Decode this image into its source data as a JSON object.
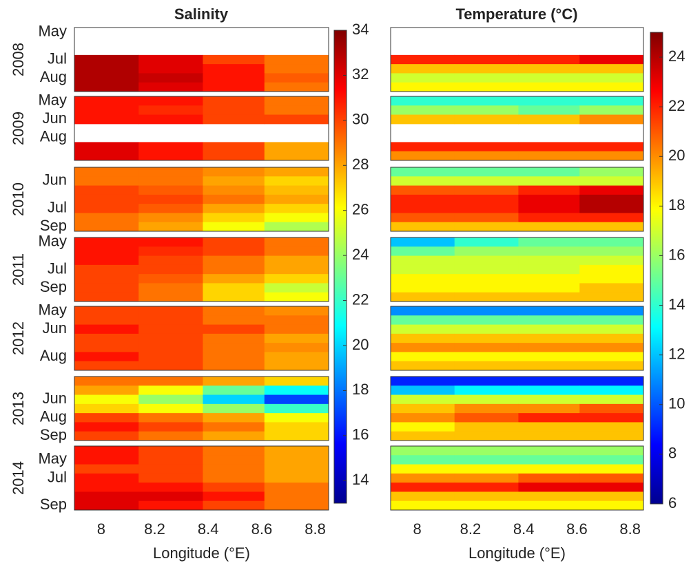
{
  "chart_data": [
    {
      "type": "heatmap",
      "title": "Salinity",
      "xlabel": "Longitude (°E)",
      "xlim": [
        7.9,
        8.85
      ],
      "xticks": [
        8,
        8.2,
        8.4,
        8.6,
        8.8
      ],
      "lon_bins": [
        7.9,
        8.14,
        8.38,
        8.61,
        8.85
      ],
      "clim": [
        13,
        34
      ],
      "cticks": [
        14,
        16,
        18,
        20,
        22,
        24,
        26,
        28,
        30,
        32,
        34
      ],
      "panels": [
        {
          "year": "2008",
          "rows": [
            "May",
            null,
            null,
            "Jul",
            null,
            "Aug",
            null
          ],
          "values": [
            null,
            null,
            null,
            [
              33,
              32,
              30,
              29
            ],
            [
              33,
              32,
              31,
              29
            ],
            [
              33,
              32.5,
              31,
              29.5
            ],
            [
              33,
              32,
              31,
              29
            ]
          ]
        },
        {
          "year": "2009",
          "rows": [
            "May",
            null,
            "Jun",
            null,
            "Aug",
            null,
            null
          ],
          "values": [
            [
              31,
              31,
              30,
              29
            ],
            [
              31,
              30.5,
              30,
              29
            ],
            [
              31,
              31,
              30,
              30
            ],
            null,
            null,
            [
              32,
              31,
              30,
              28
            ],
            [
              32,
              31,
              30,
              28
            ]
          ]
        },
        {
          "year": "2010",
          "rows": [
            null,
            "Jun",
            null,
            null,
            "Jul",
            null,
            "Sep"
          ],
          "values": [
            [
              29,
              29,
              28.5,
              28
            ],
            [
              29,
              29,
              28,
              27
            ],
            [
              30,
              29.5,
              28.5,
              27.5
            ],
            [
              30,
              30,
              29,
              28
            ],
            [
              30,
              29.5,
              28,
              27
            ],
            [
              29,
              28.5,
              27,
              26
            ],
            [
              29,
              28,
              26,
              24.5
            ]
          ]
        },
        {
          "year": "2011",
          "rows": [
            "May",
            null,
            null,
            "Jul",
            null,
            "Sep",
            null
          ],
          "values": [
            [
              31,
              31,
              30,
              29
            ],
            [
              31,
              30.5,
              30,
              29
            ],
            [
              31,
              30,
              29,
              28
            ],
            [
              30,
              30,
              29,
              28
            ],
            [
              30,
              29.5,
              28,
              27
            ],
            [
              30,
              29,
              27,
              25
            ],
            [
              30,
              29,
              27,
              26
            ]
          ]
        },
        {
          "year": "2012",
          "rows": [
            "May",
            null,
            "Jun",
            null,
            null,
            "Aug",
            null
          ],
          "values": [
            [
              30,
              30,
              29,
              28.5
            ],
            [
              30,
              30,
              29,
              29
            ],
            [
              31,
              30,
              30,
              29
            ],
            [
              30,
              30,
              29,
              28
            ],
            [
              30,
              30,
              29,
              28.5
            ],
            [
              31,
              30,
              29,
              28
            ],
            [
              30,
              30,
              29,
              28
            ]
          ]
        },
        {
          "year": "2013",
          "rows": [
            null,
            null,
            "Jun",
            null,
            "Aug",
            null,
            "Sep"
          ],
          "values": [
            [
              29,
              29,
              28,
              27
            ],
            [
              28,
              26,
              23,
              21
            ],
            [
              26,
              24,
              20,
              17
            ],
            [
              27,
              26,
              24,
              22
            ],
            [
              30,
              29,
              28,
              26
            ],
            [
              31,
              30,
              29,
              27
            ],
            [
              30,
              29,
              28,
              27
            ]
          ]
        },
        {
          "year": "2014",
          "rows": [
            null,
            "May",
            null,
            "Jul",
            null,
            null,
            "Sep"
          ],
          "values": [
            [
              31,
              30,
              29,
              28
            ],
            [
              31,
              30,
              29,
              28
            ],
            [
              30,
              30,
              29,
              28
            ],
            [
              31,
              30,
              29,
              28
            ],
            [
              31,
              31,
              30,
              29
            ],
            [
              32,
              32,
              31,
              29
            ],
            [
              32,
              31,
              30,
              29
            ]
          ]
        }
      ]
    },
    {
      "type": "heatmap",
      "title": "Temperature (°C)",
      "xlabel": "Longitude (°E)",
      "xlim": [
        7.9,
        8.85
      ],
      "xticks": [
        8,
        8.2,
        8.4,
        8.6,
        8.8
      ],
      "lon_bins": [
        7.9,
        8.14,
        8.38,
        8.61,
        8.85
      ],
      "clim": [
        6,
        25
      ],
      "cticks": [
        6,
        8,
        10,
        12,
        14,
        16,
        18,
        20,
        22,
        24
      ],
      "panels": [
        {
          "values": [
            null,
            null,
            null,
            [
              22,
              22,
              22,
              23
            ],
            [
              19,
              19,
              19,
              19
            ],
            [
              17,
              17,
              17,
              17
            ],
            [
              18,
              18,
              18,
              18
            ]
          ]
        },
        {
          "values": [
            [
              14,
              14,
              14,
              14
            ],
            [
              16,
              16,
              15,
              16
            ],
            [
              19,
              19,
              19,
              20
            ],
            null,
            null,
            [
              22,
              22,
              22,
              22
            ],
            [
              20,
              20,
              20,
              20
            ]
          ]
        },
        {
          "values": [
            [
              15,
              15,
              15,
              16
            ],
            [
              17,
              17,
              17,
              17
            ],
            [
              21,
              21,
              22,
              23
            ],
            [
              22,
              22,
              23,
              24
            ],
            [
              22,
              22,
              23,
              24
            ],
            [
              21,
              21,
              22,
              22
            ],
            [
              19,
              19,
              19,
              19
            ]
          ]
        },
        {
          "values": [
            [
              12,
              14,
              15,
              15
            ],
            [
              15,
              16,
              16,
              16
            ],
            [
              17,
              17,
              17,
              17
            ],
            [
              17,
              17,
              17,
              18
            ],
            [
              18,
              18,
              18,
              18
            ],
            [
              18,
              18,
              18,
              19
            ],
            [
              19,
              19,
              19,
              19
            ]
          ]
        },
        {
          "values": [
            [
              11,
              11,
              11,
              11
            ],
            [
              15,
              15,
              15,
              15
            ],
            [
              17,
              17,
              17,
              17
            ],
            [
              19,
              19,
              19,
              19
            ],
            [
              20,
              20,
              20,
              20
            ],
            [
              18,
              18,
              18,
              18
            ],
            [
              19,
              19,
              19,
              19
            ]
          ]
        },
        {
          "values": [
            [
              9,
              9,
              9,
              9
            ],
            [
              12,
              13,
              13,
              13
            ],
            [
              17,
              17,
              17,
              17
            ],
            [
              19,
              20,
              20,
              21
            ],
            [
              20,
              21,
              22,
              22
            ],
            [
              18,
              19,
              19,
              19
            ],
            [
              19,
              19,
              19,
              19
            ]
          ]
        },
        {
          "values": [
            [
              16,
              16,
              16,
              16
            ],
            [
              15,
              15,
              15,
              15
            ],
            [
              18,
              18,
              18,
              18
            ],
            [
              20,
              20,
              21,
              21
            ],
            [
              22,
              22,
              23,
              23
            ],
            [
              19,
              19,
              19,
              19
            ],
            [
              18,
              18,
              18,
              18
            ]
          ]
        }
      ]
    }
  ]
}
